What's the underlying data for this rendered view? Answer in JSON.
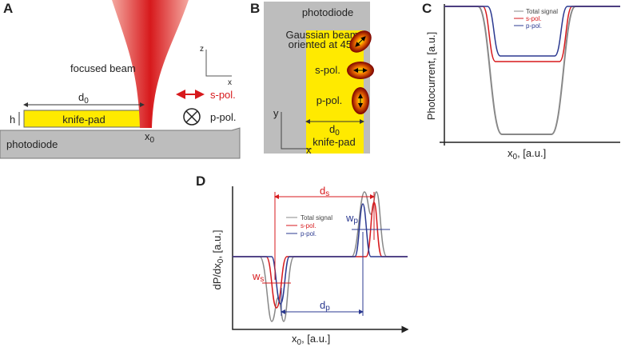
{
  "panel_a": {
    "label": "A",
    "beam": "focused beam",
    "s_pol": "s-pol.",
    "p_pol": "p-pol.",
    "pad": "knife-pad",
    "photodiode": "photodiode",
    "width": {
      "main": "d",
      "sub": "0"
    },
    "height": "h",
    "position": {
      "main": "x",
      "sub": "0"
    },
    "axis_z": "z",
    "axis_x": "x"
  },
  "panel_b": {
    "label": "B",
    "photodiode": "photodiode",
    "beam_line1": "Gaussian beam",
    "beam_line2": "oriented at 45°",
    "s_pol": "s-pol.",
    "p_pol": "p-pol.",
    "width": {
      "main": "d",
      "sub": "0"
    },
    "pad": "knife-pad",
    "axis_y": "y",
    "axis_x": "x"
  },
  "panel_c": {
    "label": "C",
    "legend": [
      "Total signal",
      "s-pol.",
      "p-pol."
    ],
    "y_label": "Photocurrent, [a.u.]",
    "x_label": {
      "main": "x",
      "sub": "0",
      "rest": ", [a.u.]"
    }
  },
  "panel_d": {
    "label": "D",
    "legend": [
      "Total signal",
      "s-pol.",
      "p-pol."
    ],
    "y_label": {
      "main": "dP/dx",
      "sub": "0",
      "rest": ", [a.u.]"
    },
    "x_label": {
      "main": "x",
      "sub": "0",
      "rest": ", [a.u.]"
    },
    "ds": {
      "main": "d",
      "sub": "s"
    },
    "dp": {
      "main": "d",
      "sub": "p"
    },
    "ws": {
      "main": "w",
      "sub": "s"
    },
    "wp": {
      "main": "w",
      "sub": "p"
    }
  }
}
